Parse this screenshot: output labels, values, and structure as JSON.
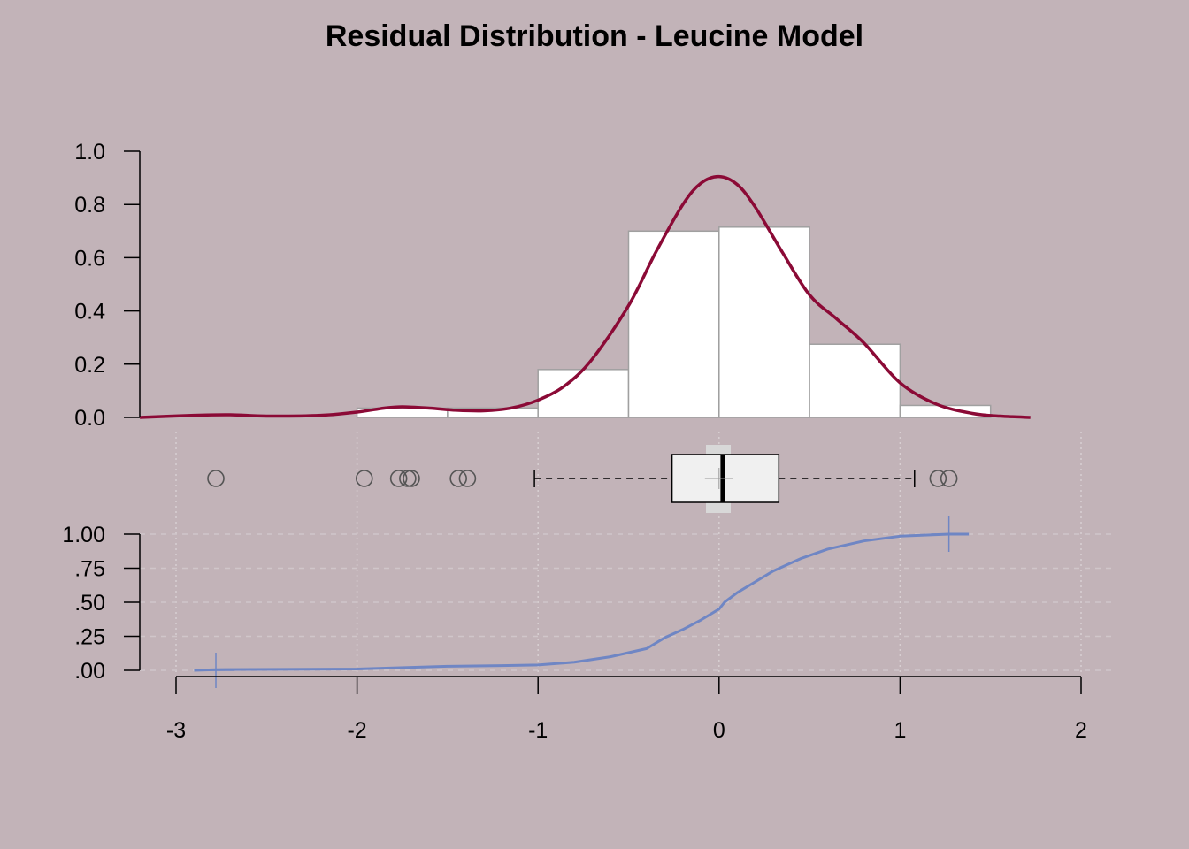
{
  "chart_data": {
    "title": "Residual Distribution - Leucine Model",
    "type": "histogram+boxplot+ecdf",
    "xlim": [
      -3.2,
      2.3
    ],
    "x_ticks": [
      -3,
      -2,
      -1,
      0,
      1,
      2
    ],
    "x_tick_labels": [
      "-3",
      "-2",
      "-1",
      "0",
      "1",
      "2"
    ],
    "colors": {
      "background": "#c2b3b8",
      "density": "#8b0a36",
      "ecdf": "#6f86c4",
      "bars": "#ffffff",
      "bar_border": "#a0a0a0",
      "box_fill": "#f0f0f0"
    },
    "histogram": {
      "ylim": [
        0,
        1.0
      ],
      "y_ticks": [
        0,
        0.2,
        0.4,
        0.6,
        0.8,
        1.0
      ],
      "y_tick_labels": [
        "0.0",
        "0.2",
        "0.4",
        "0.6",
        "0.8",
        "1.0"
      ],
      "bins": [
        {
          "from": -2.0,
          "to": -1.5,
          "density": 0.035
        },
        {
          "from": -1.5,
          "to": -1.0,
          "density": 0.035
        },
        {
          "from": -1.0,
          "to": -0.5,
          "density": 0.18
        },
        {
          "from": -0.5,
          "to": 0.0,
          "density": 0.7
        },
        {
          "from": 0.0,
          "to": 0.5,
          "density": 0.715
        },
        {
          "from": 0.5,
          "to": 1.0,
          "density": 0.275
        },
        {
          "from": 1.0,
          "to": 1.5,
          "density": 0.045
        }
      ]
    },
    "density_curve": {
      "x": [
        -3.2,
        -2.9,
        -2.7,
        -2.5,
        -2.2,
        -2.0,
        -1.85,
        -1.75,
        -1.6,
        -1.45,
        -1.3,
        -1.15,
        -1.0,
        -0.85,
        -0.7,
        -0.5,
        -0.35,
        -0.2,
        -0.1,
        0.0,
        0.1,
        0.2,
        0.35,
        0.5,
        0.65,
        0.8,
        1.0,
        1.2,
        1.4,
        1.55,
        1.72
      ],
      "y": [
        0.0,
        0.008,
        0.01,
        0.005,
        0.008,
        0.02,
        0.035,
        0.04,
        0.035,
        0.027,
        0.025,
        0.035,
        0.065,
        0.12,
        0.22,
        0.42,
        0.62,
        0.8,
        0.88,
        0.905,
        0.875,
        0.79,
        0.62,
        0.46,
        0.37,
        0.28,
        0.13,
        0.05,
        0.015,
        0.005,
        0.0
      ]
    },
    "boxplot": {
      "whisker_low": -1.02,
      "q1": -0.26,
      "median": 0.02,
      "q3": 0.33,
      "whisker_high": 1.08,
      "mean": 0.0,
      "outliers": [
        -2.78,
        -1.96,
        -1.77,
        -1.72,
        -1.7,
        -1.44,
        -1.39,
        1.21,
        1.27
      ]
    },
    "ecdf": {
      "ylim": [
        0,
        1.0
      ],
      "y_ticks": [
        0,
        0.25,
        0.5,
        0.75,
        1.0
      ],
      "y_tick_labels": [
        ".00",
        ".25",
        ".50",
        ".75",
        "1.00"
      ],
      "x": [
        -2.9,
        -2.78,
        -2.0,
        -1.5,
        -1.2,
        -1.0,
        -0.8,
        -0.6,
        -0.4,
        -0.3,
        -0.2,
        -0.1,
        0.0,
        0.03,
        0.1,
        0.2,
        0.3,
        0.45,
        0.6,
        0.8,
        1.0,
        1.27,
        1.38
      ],
      "y": [
        0.0,
        0.005,
        0.01,
        0.03,
        0.035,
        0.04,
        0.06,
        0.1,
        0.16,
        0.24,
        0.3,
        0.37,
        0.45,
        0.5,
        0.57,
        0.65,
        0.73,
        0.82,
        0.89,
        0.95,
        0.985,
        1.0,
        1.0
      ]
    }
  }
}
